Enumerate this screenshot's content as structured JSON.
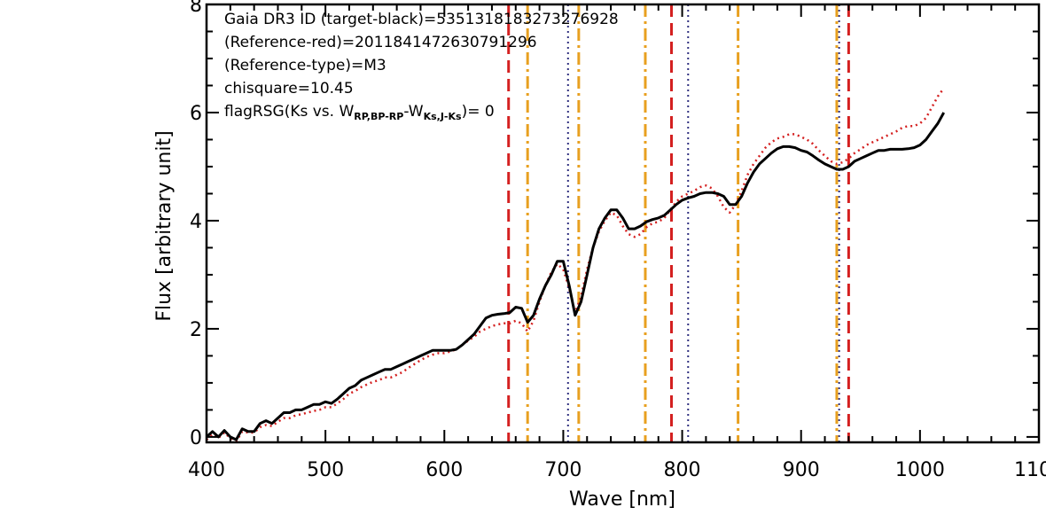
{
  "chart_data": {
    "type": "line",
    "xlabel": "Wave [nm]",
    "ylabel": "Flux [arbitrary unit]",
    "xlim": [
      400,
      1100
    ],
    "ylim": [
      -0.1,
      8
    ],
    "xticks": [
      "400",
      "500",
      "600",
      "700",
      "800",
      "900",
      "1000",
      "1100"
    ],
    "yticks": [
      "0",
      "2",
      "4",
      "6",
      "8"
    ],
    "annotations": [
      "Gaia DR3 ID (target-black)=5351318183273276928",
      "(Reference-red)=2011841472630791296",
      "(Reference-type)=M3",
      "chisquare=10.45"
    ],
    "flag_text": {
      "prefix": "flagRSG(Ks vs. W",
      "sub1": "RP,BP-RP",
      "mid": "-W",
      "sub2": "Ks,J-Ks",
      "suffix": ")= 0"
    },
    "series": [
      {
        "color": "#000000",
        "style": "solid",
        "x": [
          400,
          405,
          410,
          415,
          420,
          425,
          430,
          435,
          440,
          445,
          450,
          455,
          460,
          465,
          470,
          475,
          480,
          485,
          490,
          495,
          500,
          505,
          510,
          515,
          520,
          525,
          530,
          535,
          540,
          545,
          550,
          555,
          560,
          565,
          570,
          575,
          580,
          585,
          590,
          595,
          600,
          605,
          610,
          615,
          620,
          625,
          630,
          635,
          640,
          645,
          650,
          655,
          660,
          665,
          670,
          675,
          680,
          685,
          690,
          695,
          700,
          705,
          710,
          715,
          720,
          725,
          730,
          735,
          740,
          745,
          750,
          755,
          760,
          765,
          770,
          775,
          780,
          785,
          790,
          795,
          800,
          805,
          810,
          815,
          820,
          825,
          830,
          835,
          840,
          845,
          850,
          855,
          860,
          865,
          870,
          875,
          880,
          885,
          890,
          895,
          900,
          905,
          910,
          915,
          920,
          925,
          930,
          935,
          940,
          945,
          950,
          955,
          960,
          965,
          970,
          975,
          980,
          985,
          990,
          995,
          1000,
          1005,
          1010,
          1015,
          1020
        ],
        "y": [
          0.0,
          0.1,
          0.0,
          0.12,
          0.0,
          -0.05,
          0.15,
          0.1,
          0.1,
          0.25,
          0.3,
          0.25,
          0.35,
          0.45,
          0.45,
          0.5,
          0.5,
          0.55,
          0.6,
          0.6,
          0.65,
          0.62,
          0.7,
          0.8,
          0.9,
          0.95,
          1.05,
          1.1,
          1.15,
          1.2,
          1.25,
          1.25,
          1.3,
          1.35,
          1.4,
          1.45,
          1.5,
          1.55,
          1.6,
          1.6,
          1.6,
          1.6,
          1.62,
          1.7,
          1.8,
          1.9,
          2.05,
          2.2,
          2.25,
          2.27,
          2.28,
          2.3,
          2.4,
          2.38,
          2.12,
          2.25,
          2.55,
          2.8,
          3.0,
          3.25,
          3.25,
          2.8,
          2.25,
          2.5,
          3.0,
          3.5,
          3.85,
          4.05,
          4.2,
          4.2,
          4.05,
          3.85,
          3.85,
          3.9,
          3.98,
          4.02,
          4.05,
          4.1,
          4.2,
          4.3,
          4.38,
          4.42,
          4.45,
          4.5,
          4.52,
          4.52,
          4.5,
          4.45,
          4.3,
          4.3,
          4.45,
          4.7,
          4.9,
          5.05,
          5.15,
          5.25,
          5.33,
          5.37,
          5.37,
          5.35,
          5.3,
          5.27,
          5.2,
          5.12,
          5.05,
          5.0,
          4.95,
          4.95,
          5.0,
          5.1,
          5.15,
          5.2,
          5.25,
          5.3,
          5.3,
          5.32,
          5.32,
          5.32,
          5.33,
          5.35,
          5.4,
          5.5,
          5.65,
          5.8,
          6.0
        ]
      },
      {
        "color": "#d42020",
        "style": "dotted",
        "x": [
          400,
          405,
          410,
          415,
          420,
          425,
          430,
          435,
          440,
          445,
          450,
          455,
          460,
          465,
          470,
          475,
          480,
          485,
          490,
          495,
          500,
          505,
          510,
          515,
          520,
          525,
          530,
          535,
          540,
          545,
          550,
          555,
          560,
          565,
          570,
          575,
          580,
          585,
          590,
          595,
          600,
          605,
          610,
          615,
          620,
          625,
          630,
          635,
          640,
          645,
          650,
          655,
          660,
          665,
          670,
          675,
          680,
          685,
          690,
          695,
          700,
          705,
          710,
          715,
          720,
          725,
          730,
          735,
          740,
          745,
          750,
          755,
          760,
          765,
          770,
          775,
          780,
          785,
          790,
          795,
          800,
          805,
          810,
          815,
          820,
          825,
          830,
          835,
          840,
          845,
          850,
          855,
          860,
          865,
          870,
          875,
          880,
          885,
          890,
          895,
          900,
          905,
          910,
          915,
          920,
          925,
          930,
          935,
          940,
          945,
          950,
          955,
          960,
          965,
          970,
          975,
          980,
          985,
          990,
          995,
          1000,
          1005,
          1010,
          1015,
          1020
        ],
        "y": [
          -0.05,
          0.05,
          -0.02,
          0.08,
          -0.02,
          -0.08,
          0.1,
          0.08,
          0.08,
          0.18,
          0.22,
          0.2,
          0.28,
          0.35,
          0.35,
          0.4,
          0.42,
          0.45,
          0.48,
          0.5,
          0.55,
          0.55,
          0.62,
          0.7,
          0.8,
          0.85,
          0.92,
          0.97,
          1.02,
          1.05,
          1.1,
          1.1,
          1.15,
          1.2,
          1.28,
          1.35,
          1.42,
          1.48,
          1.52,
          1.55,
          1.55,
          1.58,
          1.62,
          1.7,
          1.78,
          1.85,
          1.95,
          2.0,
          2.05,
          2.08,
          2.1,
          2.1,
          2.15,
          2.1,
          1.95,
          2.15,
          2.5,
          2.8,
          3.05,
          3.2,
          3.1,
          2.75,
          2.3,
          2.6,
          3.1,
          3.5,
          3.8,
          4.0,
          4.15,
          4.1,
          3.9,
          3.75,
          3.7,
          3.75,
          3.88,
          3.95,
          3.98,
          4.05,
          4.2,
          4.35,
          4.45,
          4.5,
          4.55,
          4.62,
          4.65,
          4.6,
          4.45,
          4.25,
          4.15,
          4.3,
          4.55,
          4.85,
          5.05,
          5.2,
          5.35,
          5.45,
          5.52,
          5.55,
          5.6,
          5.6,
          5.55,
          5.5,
          5.42,
          5.3,
          5.2,
          5.1,
          5.05,
          5.08,
          5.15,
          5.25,
          5.32,
          5.4,
          5.45,
          5.5,
          5.55,
          5.6,
          5.65,
          5.72,
          5.75,
          5.75,
          5.8,
          5.9,
          6.1,
          6.3,
          6.45
        ]
      }
    ],
    "vlines": [
      {
        "x": 654,
        "color": "#d42020",
        "style": "dashed"
      },
      {
        "x": 670,
        "color": "#e8a020",
        "style": "dashdot"
      },
      {
        "x": 704,
        "color": "#303080",
        "style": "dotted"
      },
      {
        "x": 713,
        "color": "#e8a020",
        "style": "dashdot"
      },
      {
        "x": 769,
        "color": "#e8a020",
        "style": "dashdot"
      },
      {
        "x": 791,
        "color": "#d42020",
        "style": "dashed"
      },
      {
        "x": 805,
        "color": "#303080",
        "style": "dotted"
      },
      {
        "x": 847,
        "color": "#e8a020",
        "style": "dashdot"
      },
      {
        "x": 930,
        "color": "#e8a020",
        "style": "dashdot"
      },
      {
        "x": 932,
        "color": "#303080",
        "style": "dotted"
      },
      {
        "x": 940,
        "color": "#d42020",
        "style": "dashed"
      }
    ]
  }
}
